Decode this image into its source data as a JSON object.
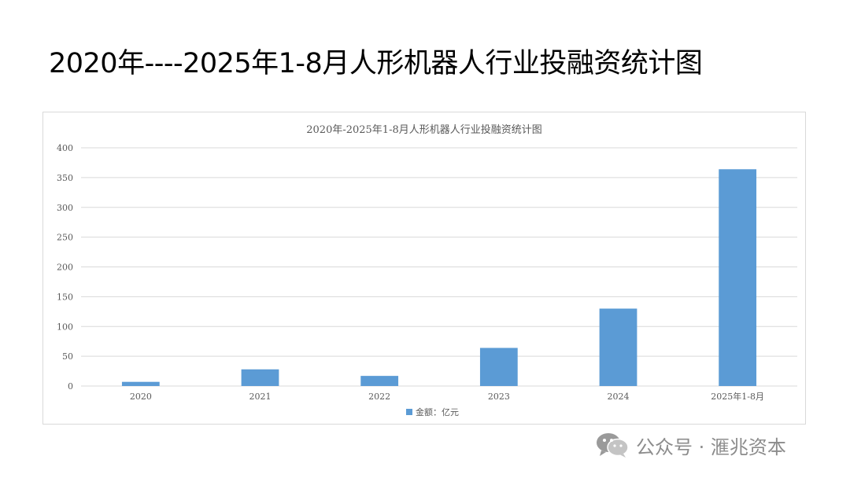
{
  "slide": {
    "title": "2020年----2025年1-8月人形机器人行业投融资统计图"
  },
  "watermark": {
    "text": "公众号 · 滙兆资本",
    "icon": "wechat-icon"
  },
  "chart_data": {
    "type": "bar",
    "title": "2020年-2025年1-8月人形机器人行业投融资统计图",
    "categories": [
      "2020",
      "2021",
      "2022",
      "2023",
      "2024",
      "2025年1-8月"
    ],
    "series": [
      {
        "name": "金额：亿元",
        "values": [
          7,
          28,
          17,
          64,
          130,
          364
        ],
        "color": "#5b9bd5"
      }
    ],
    "ylim": [
      0,
      400
    ],
    "yticks": [
      0,
      50,
      100,
      150,
      200,
      250,
      300,
      350,
      400
    ],
    "grid": true,
    "legend": "bottom",
    "colors": {
      "gridline": "#d9d9d9",
      "axis_text": "#595959",
      "frame_border": "#d9d9d9"
    }
  }
}
